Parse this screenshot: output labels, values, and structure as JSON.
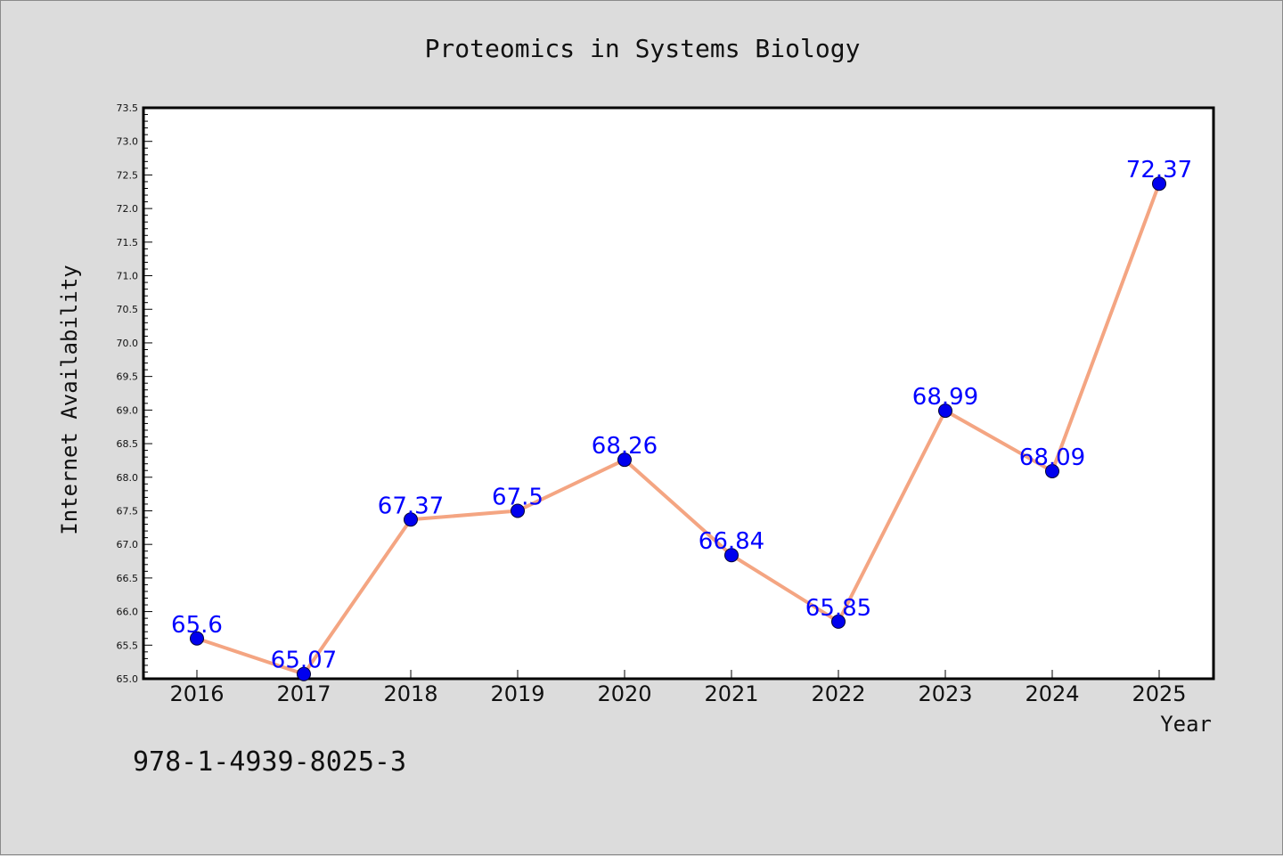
{
  "chart_data": {
    "type": "line",
    "title": "Proteomics in Systems Biology",
    "xlabel": "Year",
    "ylabel": "Internet Availability",
    "categories": [
      "2016",
      "2017",
      "2018",
      "2019",
      "2020",
      "2021",
      "2022",
      "2023",
      "2024",
      "2025"
    ],
    "values": [
      65.6,
      65.07,
      67.37,
      67.5,
      68.26,
      66.84,
      65.85,
      68.99,
      68.09,
      72.37
    ],
    "data_labels": [
      "65.6",
      "65.07",
      "67.37",
      "67.5",
      "68.26",
      "66.84",
      "65.85",
      "68.99",
      "68.09",
      "72.37"
    ],
    "ylim": [
      65.0,
      73.5
    ],
    "yticks": [
      "65.0",
      "65.5",
      "66.0",
      "66.5",
      "67.0",
      "67.5",
      "68.0",
      "68.5",
      "69.0",
      "69.5",
      "70.0",
      "70.5",
      "71.0",
      "71.5",
      "72.0",
      "72.5",
      "73.0",
      "73.5"
    ],
    "grid": false,
    "legend": "none",
    "colors": {
      "line": "#f4a582",
      "marker": "#0000ee",
      "data_label": "#0000ff",
      "background": "#dcdcdc",
      "plot_area": "#ffffff"
    }
  },
  "footnote": "978-1-4939-8025-3"
}
